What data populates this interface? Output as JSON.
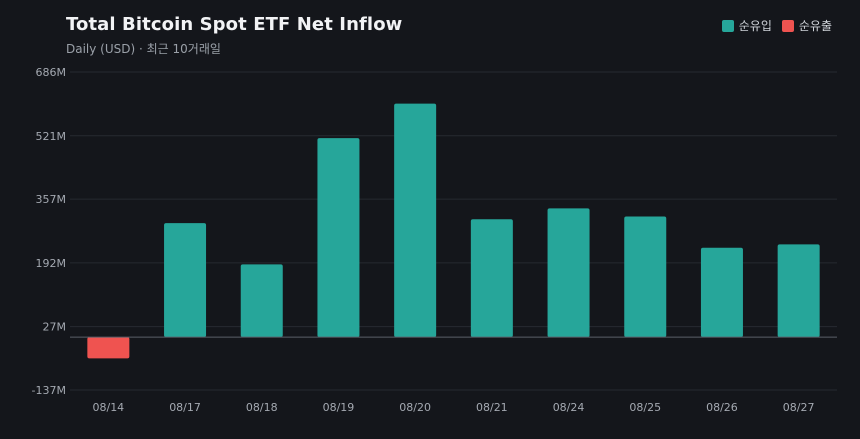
{
  "title": "Total Bitcoin Spot ETF Net Inflow",
  "subtitle": "Daily (USD) · 최근 10거래일",
  "legend": [
    {
      "label": "순유입",
      "color": "#26a69a"
    },
    {
      "label": "순유출",
      "color": "#ef5350"
    }
  ],
  "colors": {
    "background": "#14161b",
    "grid": "#262a31",
    "zero_line": "#5a5f68",
    "inflow": "#26a69a",
    "outflow": "#ef5350"
  },
  "chart_data": {
    "type": "bar",
    "title": "Total Bitcoin Spot ETF Net Inflow",
    "subtitle": "Daily (USD) · 최근 10거래일",
    "xlabel": "",
    "ylabel": "",
    "categories": [
      "08/14",
      "08/17",
      "08/18",
      "08/19",
      "08/20",
      "08/21",
      "08/24",
      "08/25",
      "08/26",
      "08/27"
    ],
    "values": [
      -55,
      295,
      188,
      515,
      604,
      305,
      333,
      312,
      231,
      240
    ],
    "value_unit": "M USD",
    "ylim": [
      -137,
      686
    ],
    "yticks": [
      -137,
      27,
      192,
      357,
      521,
      686
    ],
    "ytick_labels": [
      "-137M",
      "27M",
      "192M",
      "357M",
      "521M",
      "686M"
    ],
    "baseline": 0,
    "grid": true,
    "legend_position": "top-right",
    "series": [
      {
        "name": "순유입",
        "color": "#26a69a"
      },
      {
        "name": "순유출",
        "color": "#ef5350"
      }
    ]
  }
}
